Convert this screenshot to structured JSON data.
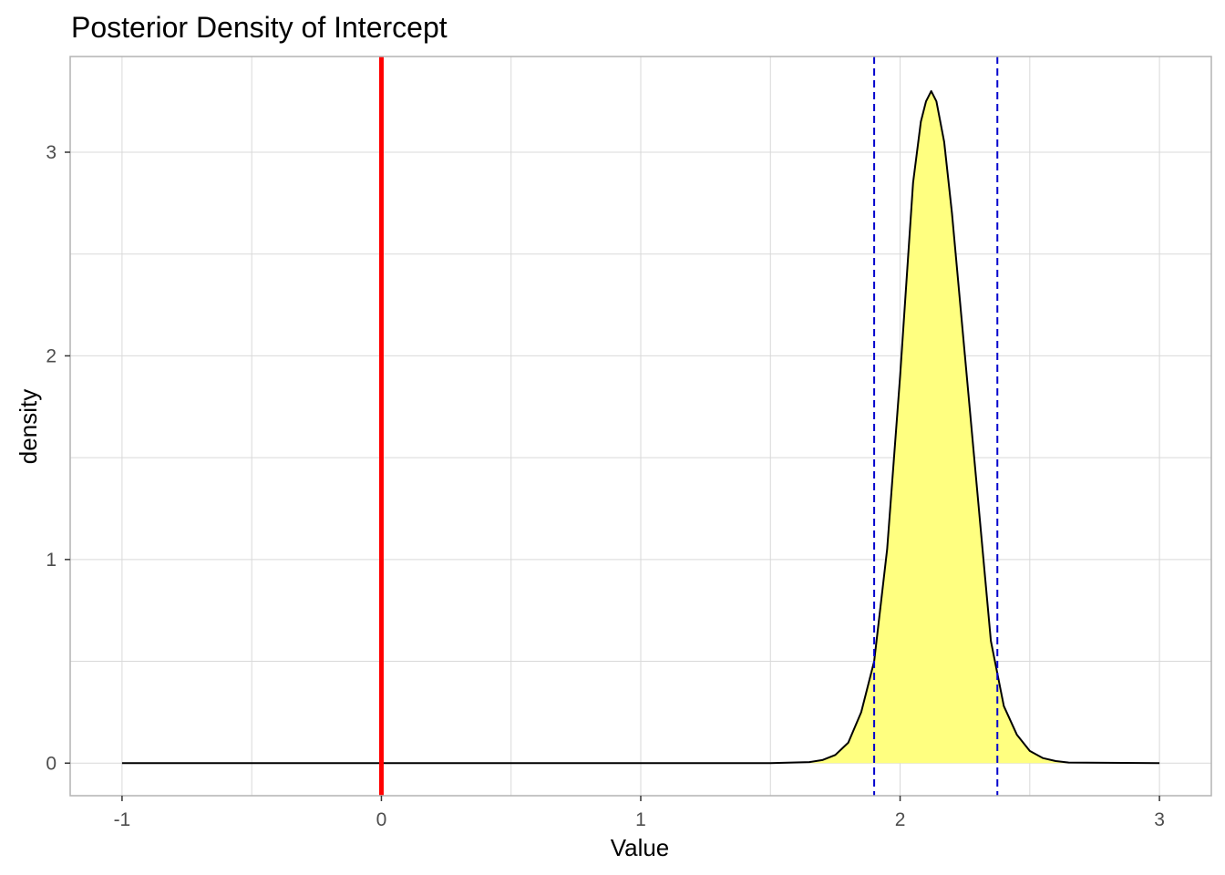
{
  "chart_data": {
    "type": "area",
    "title": "Posterior Density of Intercept",
    "xlabel": "Value",
    "ylabel": "density",
    "xlim": [
      -1.2,
      3.2
    ],
    "ylim": [
      -0.16,
      3.47
    ],
    "x_ticks": [
      -1,
      0,
      1,
      2,
      3
    ],
    "x_tick_labels": [
      "-1",
      "0",
      "1",
      "2",
      "3"
    ],
    "y_ticks": [
      0,
      1,
      2,
      3
    ],
    "y_tick_labels": [
      "0",
      "1",
      "2",
      "3"
    ],
    "grid": true,
    "colors": {
      "fill": "#ffff80",
      "density_line": "#000000",
      "reference_line": "#ff0000",
      "interval_lines": "#0000cd",
      "grid": "#d9d9d9",
      "panel_border": "#b3b3b3"
    },
    "reference_line": {
      "x": 0,
      "style": "solid"
    },
    "interval_lines": {
      "x": [
        1.9,
        2.375
      ],
      "style": "dashed"
    },
    "fill_range": [
      1.65,
      2.65
    ],
    "density": {
      "x": [
        -1.0,
        1.5,
        1.65,
        1.7,
        1.75,
        1.8,
        1.85,
        1.9,
        1.95,
        2.0,
        2.05,
        2.08,
        2.1,
        2.12,
        2.14,
        2.17,
        2.2,
        2.25,
        2.3,
        2.35,
        2.4,
        2.45,
        2.5,
        2.55,
        2.6,
        2.65,
        3.0
      ],
      "y": [
        0,
        0,
        0.005,
        0.015,
        0.04,
        0.1,
        0.25,
        0.5,
        1.05,
        1.9,
        2.85,
        3.15,
        3.25,
        3.3,
        3.25,
        3.05,
        2.7,
        2.0,
        1.3,
        0.6,
        0.28,
        0.14,
        0.06,
        0.025,
        0.01,
        0.003,
        0
      ]
    }
  }
}
